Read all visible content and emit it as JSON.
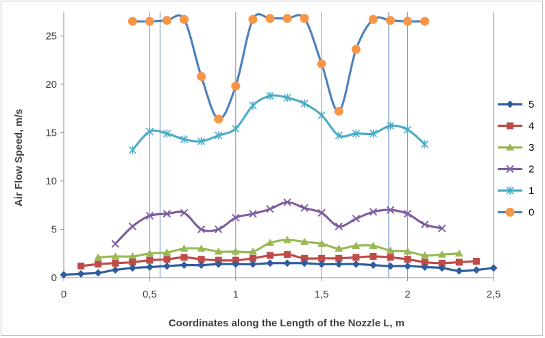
{
  "chart_data": {
    "type": "line",
    "xlabel": "Coordinates along the Length of the Nozzle L,  m",
    "ylabel": "Air Flow Speed, m/s",
    "xlim": [
      0,
      2.5
    ],
    "ylim": [
      0,
      27.5
    ],
    "x_ticks": [
      0,
      0.5,
      1,
      1.5,
      2,
      2.5
    ],
    "x_tick_labels": [
      "0",
      "0,5",
      "1",
      "1,5",
      "2",
      "2,5"
    ],
    "y_ticks": [
      0,
      5,
      10,
      15,
      20,
      25
    ],
    "y_tick_labels": [
      "0",
      "5",
      "10",
      "15",
      "20",
      "25"
    ],
    "grid": "vertical major gridlines",
    "reference_lines_x": [
      0.56,
      1.89
    ],
    "legend_position": "right",
    "series": [
      {
        "name": "5",
        "color": "#2E5D9E",
        "marker": "diamond",
        "x": [
          0,
          0.1,
          0.2,
          0.3,
          0.4,
          0.5,
          0.6,
          0.7,
          0.8,
          0.9,
          1.0,
          1.1,
          1.2,
          1.3,
          1.4,
          1.5,
          1.6,
          1.7,
          1.8,
          1.9,
          2.0,
          2.1,
          2.2,
          2.3,
          2.4,
          2.5
        ],
        "values": [
          0.3,
          0.4,
          0.5,
          0.8,
          1.0,
          1.1,
          1.2,
          1.3,
          1.3,
          1.4,
          1.4,
          1.4,
          1.5,
          1.5,
          1.5,
          1.4,
          1.4,
          1.4,
          1.3,
          1.2,
          1.2,
          1.1,
          1.0,
          0.7,
          0.8,
          1.0
        ]
      },
      {
        "name": "4",
        "color": "#BE4B48",
        "marker": "square",
        "x": [
          0.1,
          0.2,
          0.3,
          0.4,
          0.5,
          0.6,
          0.7,
          0.8,
          0.9,
          1.0,
          1.1,
          1.2,
          1.3,
          1.4,
          1.5,
          1.6,
          1.7,
          1.8,
          1.9,
          2.0,
          2.1,
          2.2,
          2.3,
          2.4
        ],
        "values": [
          1.2,
          1.4,
          1.5,
          1.6,
          1.8,
          1.9,
          2.1,
          1.9,
          1.8,
          1.8,
          2.0,
          2.3,
          2.4,
          2.0,
          2.0,
          2.0,
          2.1,
          2.2,
          2.1,
          1.9,
          1.6,
          1.5,
          1.6,
          1.7
        ]
      },
      {
        "name": "3",
        "color": "#98B954",
        "marker": "triangle",
        "x": [
          0.2,
          0.3,
          0.4,
          0.5,
          0.6,
          0.7,
          0.8,
          0.9,
          1.0,
          1.1,
          1.2,
          1.3,
          1.4,
          1.5,
          1.6,
          1.7,
          1.8,
          1.9,
          2.0,
          2.1,
          2.2,
          2.3
        ],
        "values": [
          2.1,
          2.2,
          2.2,
          2.5,
          2.6,
          3.0,
          3.0,
          2.7,
          2.7,
          2.7,
          3.6,
          3.9,
          3.7,
          3.5,
          3.0,
          3.3,
          3.3,
          2.8,
          2.7,
          2.3,
          2.4,
          2.5
        ]
      },
      {
        "name": "2",
        "color": "#7D5FA0",
        "marker": "x",
        "x": [
          0.3,
          0.4,
          0.5,
          0.6,
          0.7,
          0.8,
          0.9,
          1.0,
          1.1,
          1.2,
          1.3,
          1.4,
          1.5,
          1.6,
          1.7,
          1.8,
          1.9,
          2.0,
          2.1,
          2.2
        ],
        "values": [
          3.5,
          5.3,
          6.4,
          6.6,
          6.7,
          5.0,
          5.0,
          6.2,
          6.6,
          7.1,
          7.8,
          7.2,
          6.7,
          5.3,
          6.1,
          6.8,
          7.0,
          6.6,
          5.5,
          5.1
        ]
      },
      {
        "name": "1",
        "color": "#4BACC6",
        "marker": "star",
        "x": [
          0.4,
          0.5,
          0.6,
          0.7,
          0.8,
          0.9,
          1.0,
          1.1,
          1.2,
          1.3,
          1.4,
          1.5,
          1.6,
          1.7,
          1.8,
          1.9,
          2.0,
          2.1
        ],
        "values": [
          13.2,
          15.1,
          14.9,
          14.3,
          14.1,
          14.7,
          15.4,
          17.8,
          18.8,
          18.6,
          18.0,
          16.8,
          14.7,
          14.9,
          14.9,
          15.7,
          15.3,
          13.8
        ]
      },
      {
        "name": "0",
        "color": "#F79646",
        "line_color": "#4F81BD",
        "marker": "circle",
        "x": [
          0.4,
          0.5,
          0.6,
          0.7,
          0.8,
          0.9,
          1.0,
          1.1,
          1.2,
          1.3,
          1.4,
          1.5,
          1.6,
          1.7,
          1.8,
          1.9,
          2.0,
          2.1
        ],
        "values": [
          26.5,
          26.5,
          26.6,
          26.7,
          20.8,
          16.4,
          19.8,
          26.7,
          26.8,
          26.8,
          26.8,
          22.1,
          17.2,
          23.6,
          26.7,
          26.6,
          26.5,
          26.5
        ]
      }
    ]
  }
}
